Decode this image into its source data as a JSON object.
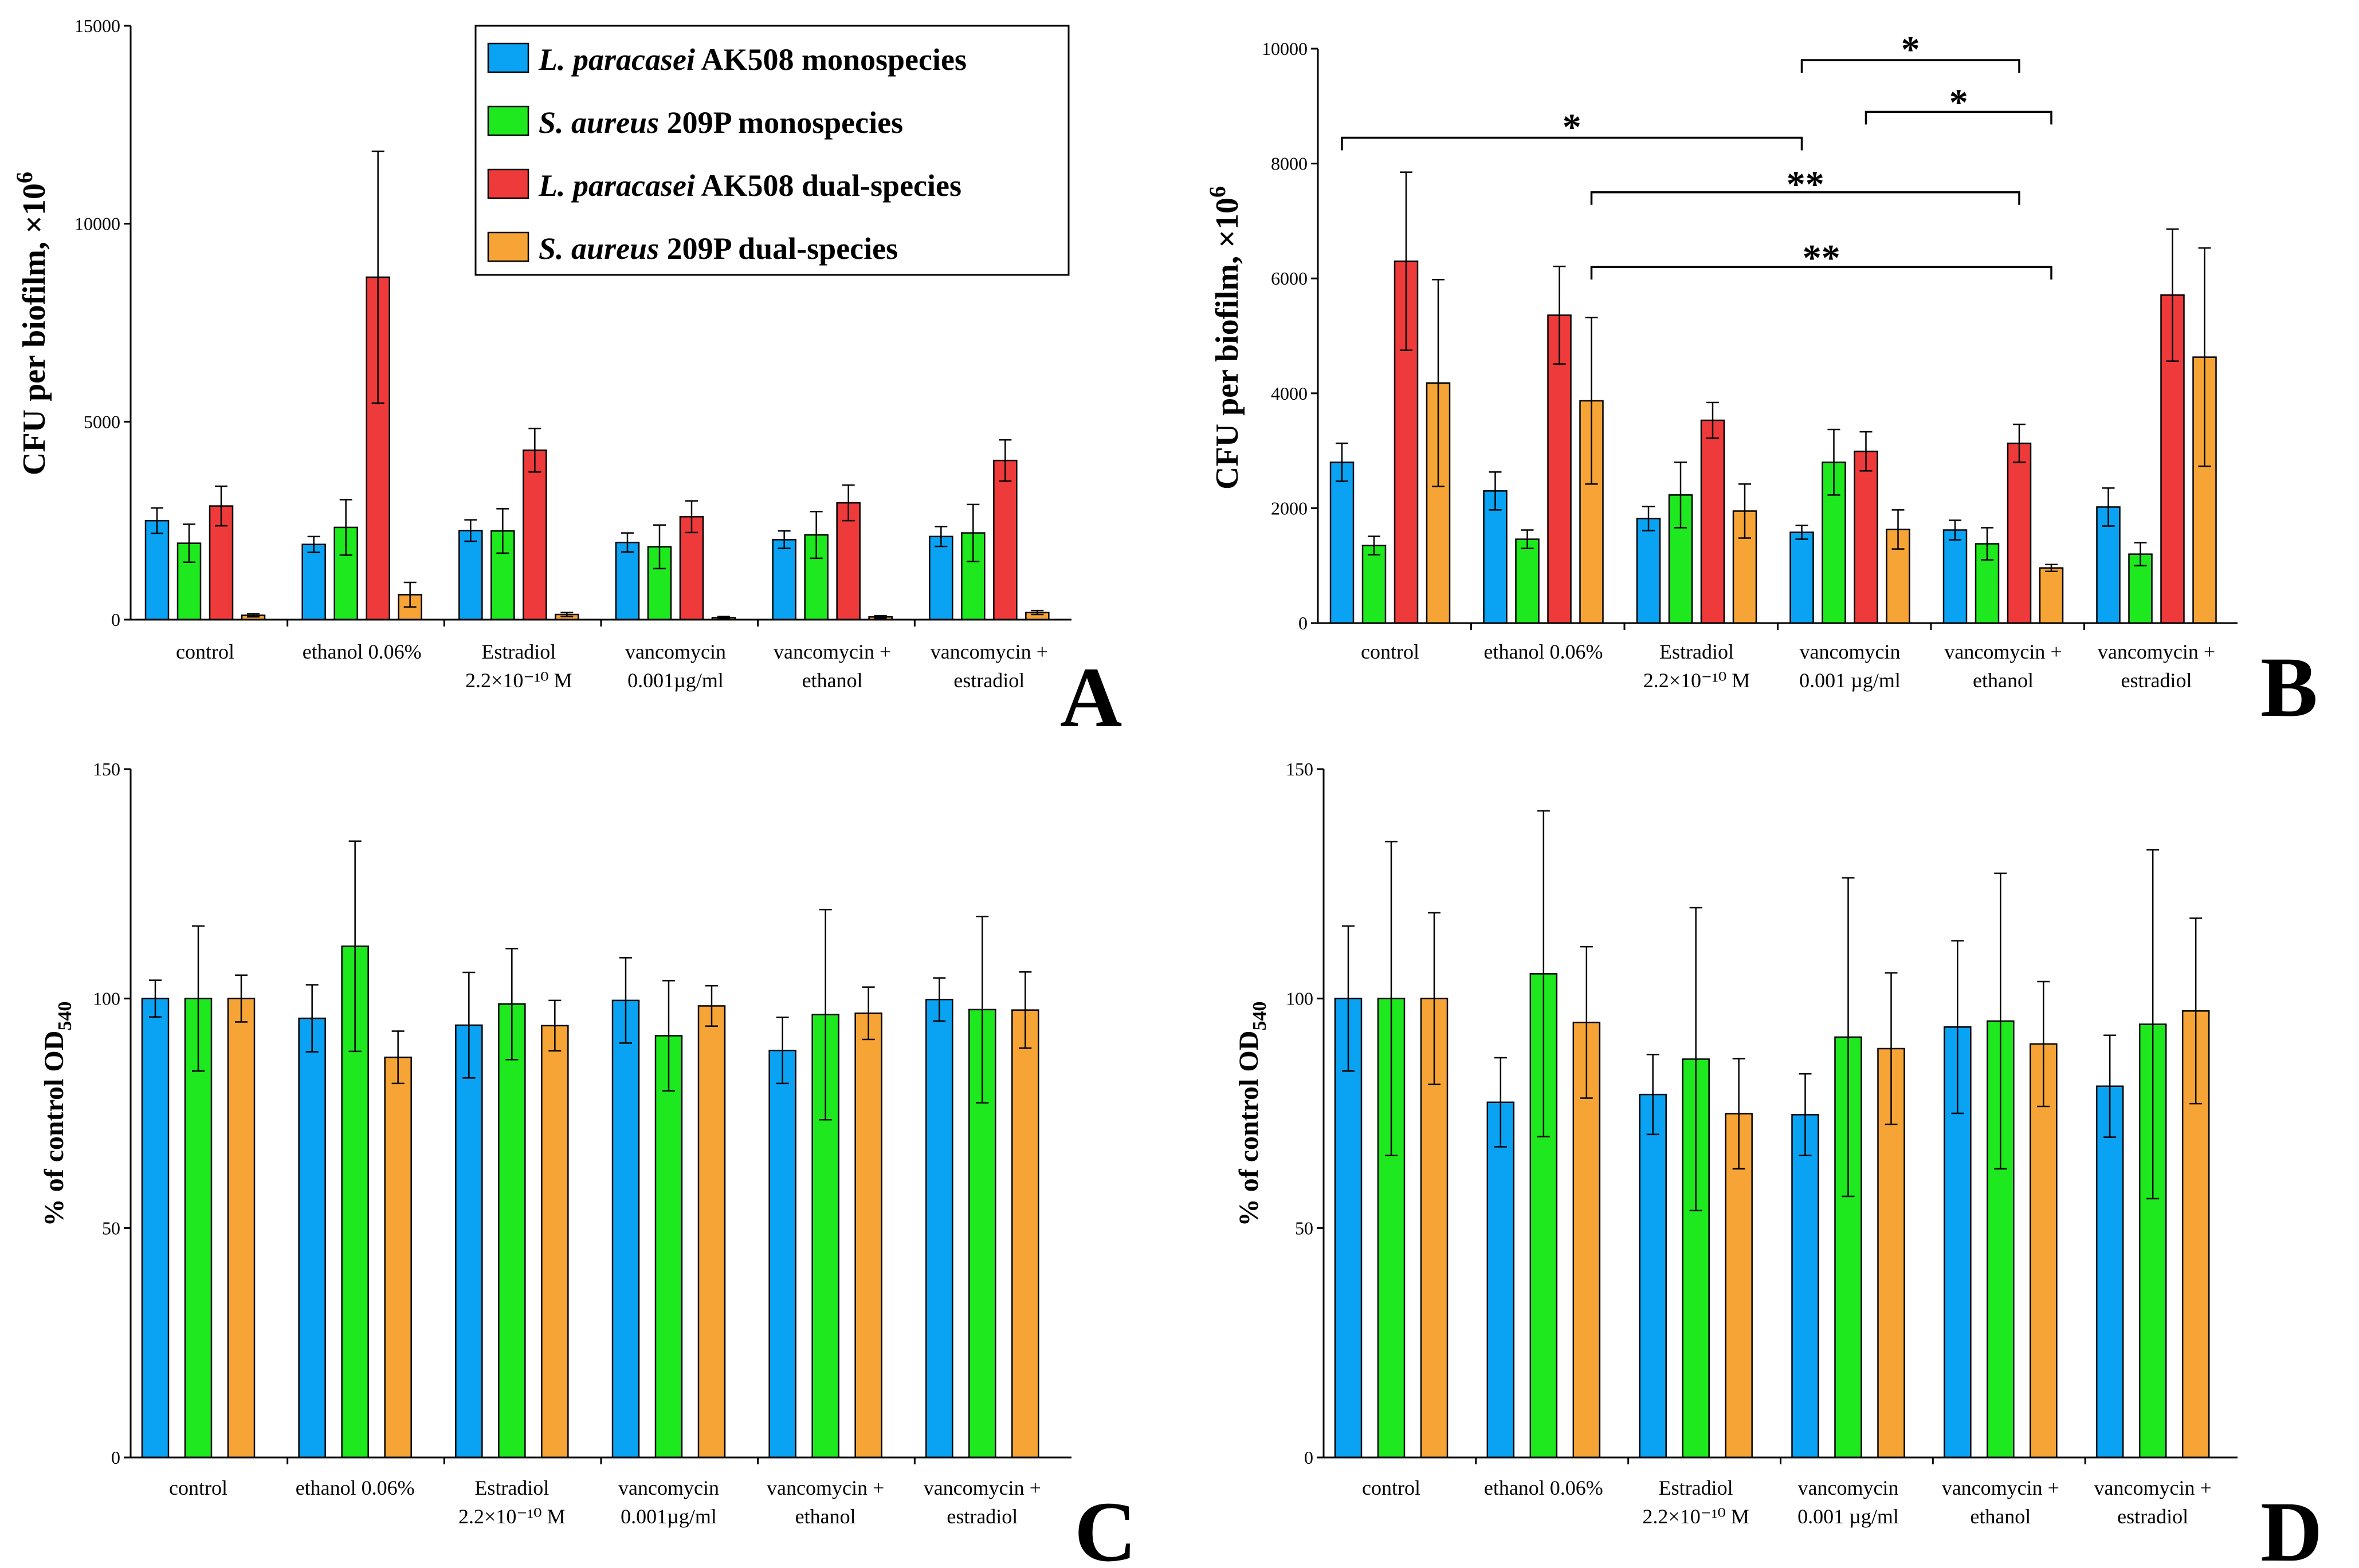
{
  "colors": {
    "L_mono": "#0aa2f2",
    "S_mono": "#1ee81e",
    "L_dual": "#ee3a3a",
    "S_dual": "#f7a437",
    "axis": "#000000"
  },
  "legend": [
    {
      "species": "L. paracasei",
      "strain": " AK508 monospecies",
      "color_key": "L_mono"
    },
    {
      "species": "S. aureus",
      "strain": " 209P monospecies",
      "color_key": "S_mono"
    },
    {
      "species": "L. paracasei",
      "strain": " AK508 dual-species",
      "color_key": "L_dual"
    },
    {
      "species": "S. aureus",
      "strain": " 209P dual-species",
      "color_key": "S_dual"
    }
  ],
  "chart_data": [
    {
      "panel": "A",
      "type": "bar",
      "ylabel_main": "CFU per biofilm, ×10",
      "ylabel_sup": "6",
      "ylim": [
        0,
        15000
      ],
      "yticks": [
        "0",
        "5000",
        "10000",
        "15000"
      ],
      "ytick_values": [
        0,
        5000,
        10000,
        15000
      ],
      "categories": [
        [
          "control"
        ],
        [
          "ethanol 0.06%"
        ],
        [
          "Estradiol",
          "2.2×10⁻¹⁰ M"
        ],
        [
          "vancomycin",
          "0.001µg/ml"
        ],
        [
          "vancomycin +",
          "ethanol"
        ],
        [
          "vancomycin +",
          "estradiol"
        ]
      ],
      "series": [
        {
          "name": "L. paracasei AK508 monospecies",
          "color_key": "L_mono",
          "values": [
            2500,
            1900,
            2250,
            1950,
            2020,
            2100
          ],
          "errors": [
            320,
            200,
            270,
            240,
            220,
            250
          ]
        },
        {
          "name": "S. aureus 209P monospecies",
          "color_key": "S_mono",
          "values": [
            1930,
            2330,
            2240,
            1840,
            2140,
            2190
          ],
          "errors": [
            480,
            700,
            560,
            550,
            590,
            720
          ]
        },
        {
          "name": "L. paracasei AK508 dual-species",
          "color_key": "L_dual",
          "values": [
            2870,
            8650,
            4280,
            2600,
            2950,
            4020
          ],
          "errors": [
            500,
            3180,
            550,
            400,
            450,
            520
          ]
        },
        {
          "name": "S. aureus 209P dual-species",
          "color_key": "S_dual",
          "values": [
            110,
            630,
            130,
            50,
            70,
            180
          ],
          "errors": [
            40,
            310,
            50,
            30,
            30,
            50
          ]
        }
      ]
    },
    {
      "panel": "B",
      "type": "bar",
      "ylabel_main": "CFU per biofilm, ×10",
      "ylabel_sup": "6",
      "ylim": [
        0,
        10000
      ],
      "yticks": [
        "0",
        "2000",
        "4000",
        "6000",
        "8000",
        "10000"
      ],
      "ytick_values": [
        0,
        2000,
        4000,
        6000,
        8000,
        10000
      ],
      "categories": [
        [
          "control"
        ],
        [
          "ethanol 0.06%"
        ],
        [
          "Estradiol",
          "2.2×10⁻¹⁰ M"
        ],
        [
          "vancomycin",
          "0.001 µg/ml"
        ],
        [
          "vancomycin +",
          "ethanol"
        ],
        [
          "vancomycin +",
          "estradiol"
        ]
      ],
      "series": [
        {
          "name": "L. paracasei AK508 monospecies",
          "color_key": "L_mono",
          "values": [
            2800,
            2300,
            1820,
            1580,
            1620,
            2020
          ],
          "errors": [
            330,
            330,
            210,
            120,
            170,
            330
          ]
        },
        {
          "name": "S. aureus 209P monospecies",
          "color_key": "S_mono",
          "values": [
            1350,
            1460,
            2230,
            2800,
            1380,
            1200
          ],
          "errors": [
            160,
            160,
            570,
            570,
            280,
            200
          ]
        },
        {
          "name": "L. paracasei AK508 dual-species",
          "color_key": "L_dual",
          "values": [
            6300,
            5360,
            3530,
            2990,
            3130,
            5710
          ],
          "errors": [
            1550,
            850,
            310,
            340,
            330,
            1150
          ]
        },
        {
          "name": "S. aureus 209P dual-species",
          "color_key": "S_dual",
          "values": [
            4180,
            3870,
            1950,
            1630,
            960,
            4630
          ],
          "errors": [
            1800,
            1450,
            470,
            340,
            60,
            1900
          ]
        }
      ],
      "significance": [
        {
          "label": "*",
          "from": [
            0,
            0
          ],
          "to": [
            3,
            0
          ],
          "y": 8450,
          "text_y": 8700
        },
        {
          "label": "**",
          "from": [
            1,
            3
          ],
          "to": [
            4,
            2
          ],
          "y": 7500,
          "text_y": 7700
        },
        {
          "label": "**",
          "from": [
            1,
            3
          ],
          "to": [
            4,
            3
          ],
          "y": 6200,
          "text_y": 6420
        },
        {
          "label": "*",
          "from": [
            3,
            0
          ],
          "to": [
            4,
            2
          ],
          "y": 9800,
          "text_y": 10050
        },
        {
          "label": "*",
          "from": [
            3,
            2
          ],
          "to": [
            4,
            3
          ],
          "y": 8900,
          "text_y": 9130
        }
      ]
    },
    {
      "panel": "C",
      "type": "bar",
      "ylabel_main": "% of control OD",
      "ylabel_sub": "540",
      "ylim": [
        0,
        150
      ],
      "yticks": [
        "0",
        "50",
        "100",
        "150"
      ],
      "ytick_values": [
        0,
        50,
        100,
        150
      ],
      "categories": [
        [
          "control"
        ],
        [
          "ethanol 0.06%"
        ],
        [
          "Estradiol",
          "2.2×10⁻¹⁰ M"
        ],
        [
          "vancomycin",
          "0.001µg/ml"
        ],
        [
          "vancomycin +",
          "ethanol"
        ],
        [
          "vancomycin +",
          "estradiol"
        ]
      ],
      "series": [
        {
          "name": "L. paracasei AK508 monospecies",
          "color_key": "L_mono",
          "values": [
            100,
            95.7,
            94.2,
            99.6,
            88.7,
            99.8
          ],
          "errors": [
            4,
            7.3,
            11.5,
            9.3,
            7.2,
            4.7
          ]
        },
        {
          "name": "S. aureus 209P monospecies",
          "color_key": "S_mono",
          "values": [
            100,
            111.4,
            98.8,
            91.9,
            96.5,
            97.6
          ],
          "errors": [
            15.8,
            22.9,
            12.1,
            12,
            22.9,
            20.3
          ]
        },
        {
          "name": "S. aureus 209P dual-species",
          "color_key": "S_dual",
          "values": [
            100,
            87.2,
            94.1,
            98.4,
            96.8,
            97.5
          ],
          "errors": [
            5.1,
            5.7,
            5.5,
            4.4,
            5.7,
            8.3
          ]
        }
      ]
    },
    {
      "panel": "D",
      "type": "bar",
      "ylabel_main": "% of control OD",
      "ylabel_sub": "540",
      "ylim": [
        0,
        150
      ],
      "yticks": [
        "0",
        "50",
        "100",
        "150"
      ],
      "ytick_values": [
        0,
        50,
        100,
        150
      ],
      "categories": [
        [
          "control"
        ],
        [
          "ethanol 0.06%"
        ],
        [
          "Estradiol",
          "2.2×10⁻¹⁰ M"
        ],
        [
          "vancomycin",
          "0.001 µg/ml"
        ],
        [
          "vancomycin +",
          "ethanol"
        ],
        [
          "vancomycin +",
          "estradiol"
        ]
      ],
      "series": [
        {
          "name": "L. paracasei AK508 monospecies",
          "color_key": "L_mono",
          "values": [
            100,
            77.4,
            79.1,
            74.7,
            93.8,
            80.9
          ],
          "errors": [
            15.8,
            9.7,
            8.7,
            8.9,
            18.8,
            11.1
          ]
        },
        {
          "name": "S. aureus 209P monospecies",
          "color_key": "S_mono",
          "values": [
            100,
            105.4,
            86.8,
            91.6,
            95.1,
            94.4
          ],
          "errors": [
            34.2,
            35.5,
            33,
            34.7,
            32.2,
            38
          ]
        },
        {
          "name": "S. aureus 209P dual-species",
          "color_key": "S_dual",
          "values": [
            100,
            94.8,
            74.9,
            89.1,
            90.1,
            97.3
          ],
          "errors": [
            18.7,
            16.5,
            12,
            16.5,
            13.6,
            20.2
          ]
        }
      ]
    }
  ]
}
